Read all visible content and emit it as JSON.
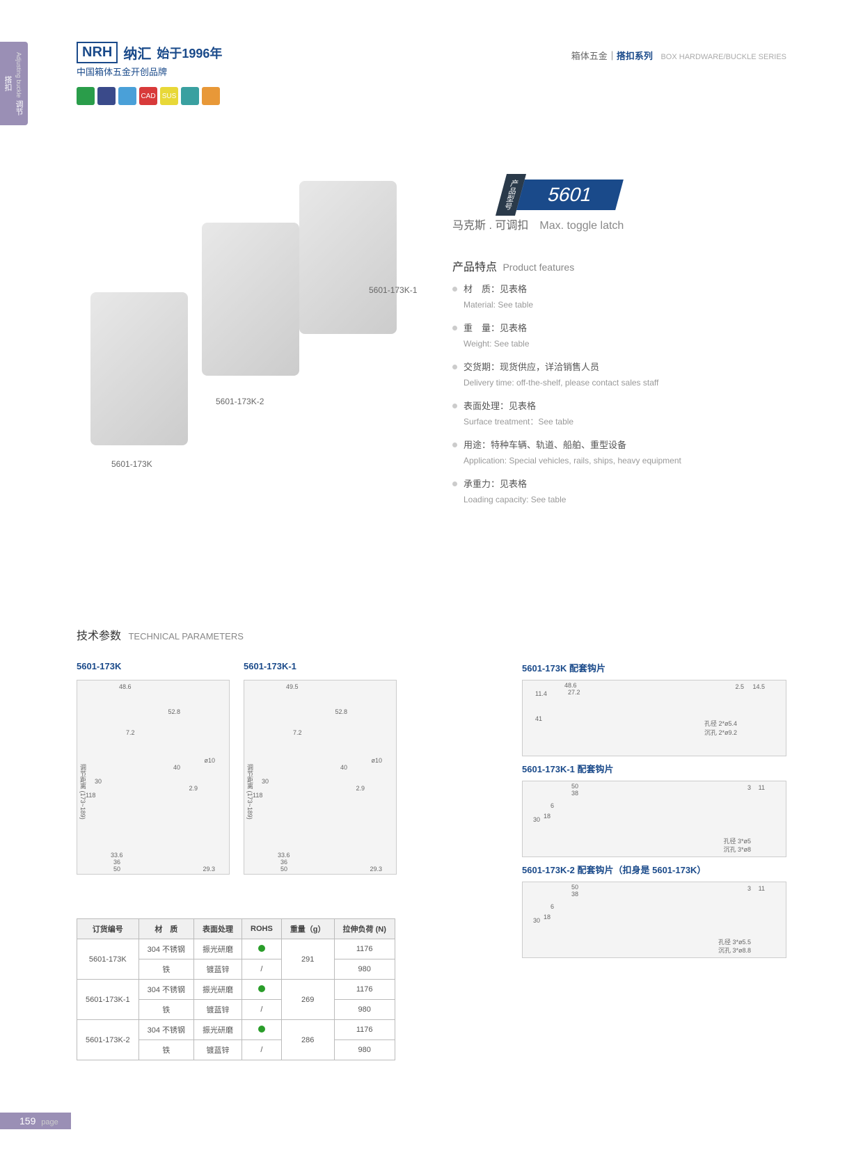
{
  "sidebar": {
    "cn": "调节搭扣",
    "en": "Adjusting buckle"
  },
  "logo": {
    "brand": "NRH",
    "name": "纳汇",
    "since": "始于1996年",
    "tagline": "中国箱体五金开创品牌"
  },
  "header": {
    "cat1": "箱体五金",
    "cat2": "搭扣系列",
    "en": "BOX HARDWARE/BUCKLE SERIES"
  },
  "icons": [
    {
      "color": "#2a9d4a"
    },
    {
      "color": "#3a4a8a"
    },
    {
      "color": "#4aa0d8"
    },
    {
      "color": "#d83a3a",
      "label": "CAD"
    },
    {
      "color": "#e8d838",
      "label": "SUS"
    },
    {
      "color": "#3aa0a0"
    },
    {
      "color": "#e89838"
    }
  ],
  "product": {
    "badge_label": "产品型号",
    "number": "5601",
    "name_cn": "马克斯 . 可调扣",
    "name_en": "Max. toggle latch"
  },
  "product_labels": [
    "5601-173K",
    "5601-173K-2",
    "5601-173K-1"
  ],
  "features_title": {
    "cn": "产品特点",
    "en": "Product features"
  },
  "features": [
    {
      "cn": "材　质：见表格",
      "en": "Material: See table"
    },
    {
      "cn": "重　量：见表格",
      "en": "Weight: See table"
    },
    {
      "cn": "交货期：现货供应，详洽销售人员",
      "en": "Delivery time: off-the-shelf, please contact sales staff"
    },
    {
      "cn": "表面处理：见表格",
      "en": "Surface treatment：See table"
    },
    {
      "cn": "用途：特种车辆、轨道、船舶、重型设备",
      "en": "Application: Special vehicles, rails, ships, heavy equipment"
    },
    {
      "cn": "承重力：见表格",
      "en": "Loading capacity: See table"
    }
  ],
  "tech_title": {
    "cn": "技术参数",
    "en": "TECHNICAL PARAMETERS"
  },
  "diagrams": {
    "d1": {
      "title": "5601-173K",
      "dims": {
        "w": "48.6",
        "h1": "52.8",
        "h2": "7.2",
        "h3": "40",
        "h4": "30",
        "h5": "118",
        "range": "调节距离 (173~189)",
        "b1": "33.6",
        "b2": "36",
        "b3": "50",
        "hole": "ø10",
        "side": "29.3",
        "t": "2.9"
      }
    },
    "d2": {
      "title": "5601-173K-1",
      "dims": {
        "w": "49.5",
        "h1": "52.8",
        "h2": "7.2",
        "h3": "40",
        "h4": "30",
        "h5": "118",
        "range": "调节距离 (173~189)",
        "b1": "33.6",
        "b2": "36",
        "b3": "50",
        "hole": "ø10",
        "side": "29.3",
        "t": "2.9"
      }
    },
    "hook1": {
      "title": "5601-173K 配套钩片",
      "dims": {
        "w": "48.6",
        "w2": "27.2",
        "h1": "11.4",
        "h2": "41",
        "t": "2.5",
        "s": "14.5",
        "hole": "孔径 2*ø5.4",
        "csink": "沉孔 2*ø9.2"
      }
    },
    "hook2": {
      "title": "5601-173K-1 配套钩片",
      "dims": {
        "w": "50",
        "w2": "38",
        "h": "30",
        "h2": "18",
        "h3": "6",
        "t": "3",
        "s": "11",
        "hole": "孔径 3*ø5",
        "csink": "沉孔 3*ø8"
      }
    },
    "hook3": {
      "title": "5601-173K-2 配套钩片（扣身是 5601-173K）",
      "dims": {
        "w": "50",
        "w2": "38",
        "h": "30",
        "h2": "18",
        "h3": "6",
        "t": "3",
        "s": "11",
        "hole": "孔径 3*ø5.5",
        "csink": "沉孔 3*ø8.8"
      }
    }
  },
  "table": {
    "headers": [
      "订货编号",
      "材　质",
      "表面处理",
      "ROHS",
      "重量（g）",
      "拉伸负荷 (N)"
    ],
    "rows": [
      {
        "code": "5601-173K",
        "mat": "304 不锈钢",
        "surf": "振光研磨",
        "rohs": true,
        "weight": "291",
        "load": "1176",
        "span": 2
      },
      {
        "mat": "铁",
        "surf": "镀蓝锌",
        "rohs": false,
        "load": "980"
      },
      {
        "code": "5601-173K-1",
        "mat": "304 不锈钢",
        "surf": "振光研磨",
        "rohs": true,
        "weight": "269",
        "load": "1176",
        "span": 2
      },
      {
        "mat": "铁",
        "surf": "镀蓝锌",
        "rohs": false,
        "load": "980"
      },
      {
        "code": "5601-173K-2",
        "mat": "304 不锈钢",
        "surf": "振光研磨",
        "rohs": true,
        "weight": "286",
        "load": "1176",
        "span": 2
      },
      {
        "mat": "铁",
        "surf": "镀蓝锌",
        "rohs": false,
        "load": "980"
      }
    ]
  },
  "page": {
    "num": "159",
    "label": "page"
  }
}
